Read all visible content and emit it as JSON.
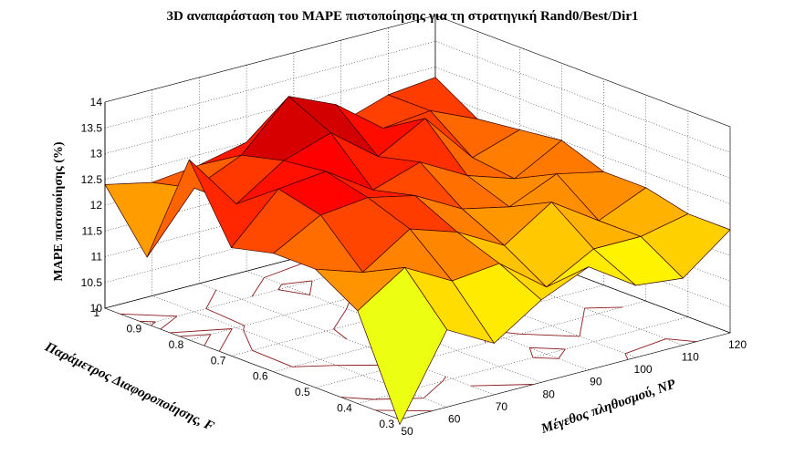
{
  "chart_data": {
    "type": "surface",
    "title": "3D αναπαράσταση του MAPE πιστοποίησης για τη στρατηγική Rand0/Best/Dir1",
    "xlabel": "Παράμετρος Διαφοροποίησης, F",
    "ylabel": "Μέγεθος πληθυσμού, NP",
    "zlabel": "MAPE πιστοποίησης (%)",
    "x_ticks": [
      "0.3",
      "0.4",
      "0.5",
      "0.6",
      "0.7",
      "0.8",
      "0.9",
      "1"
    ],
    "y_ticks": [
      "50",
      "60",
      "70",
      "80",
      "90",
      "100",
      "110",
      "120"
    ],
    "z_ticks": [
      "10",
      "10.5",
      "11",
      "11.5",
      "12",
      "12.5",
      "13",
      "13.5",
      "14"
    ],
    "x": [
      0.3,
      0.4,
      0.5,
      0.6,
      0.7,
      0.8,
      0.9,
      1.0
    ],
    "y": [
      50,
      60,
      70,
      80,
      90,
      100,
      110,
      120
    ],
    "zlim": [
      10,
      14
    ],
    "contour_base": true,
    "colormap": "jet",
    "grid": true,
    "z": [
      [
        9.9,
        11.5,
        11.0,
        11.6,
        12.0,
        11.4,
        11.3,
        12.0
      ],
      [
        11.8,
        12.4,
        11.9,
        12.0,
        11.3,
        11.8,
        11.8,
        12.0
      ],
      [
        12.3,
        12.0,
        12.6,
        12.3,
        11.8,
        12.4,
        11.8,
        12.2
      ],
      [
        12.3,
        12.8,
        12.9,
        12.7,
        12.2,
        12.0,
        12.4,
        12.2
      ],
      [
        12.1,
        13.0,
        13.1,
        12.5,
        12.8,
        12.3,
        12.0,
        12.5
      ],
      [
        13.5,
        12.4,
        13.0,
        13.3,
        12.6,
        13.1,
        12.1,
        12.4
      ],
      [
        11.3,
        12.4,
        12.8,
        13.7,
        13.3,
        12.6,
        12.7,
        12.3
      ],
      [
        12.4,
        12.2,
        12.3,
        12.5,
        12.9,
        12.4,
        12.7,
        12.8
      ]
    ]
  }
}
